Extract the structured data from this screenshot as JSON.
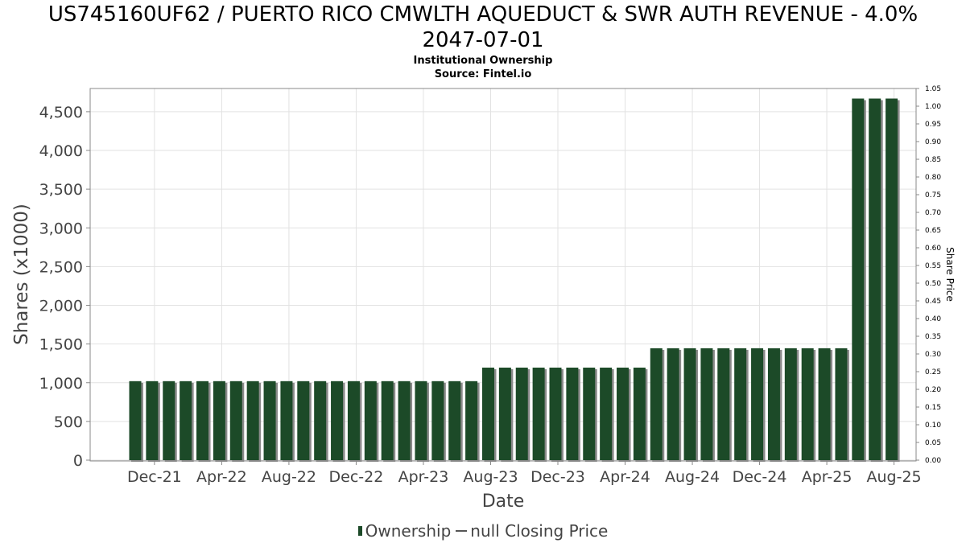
{
  "chart_data": {
    "type": "bar",
    "title": "US745160UF62 / PUERTO RICO CMWLTH AQUEDUCT & SWR AUTH REVENUE - 4.0% 2047-07-01",
    "subtitle": "Institutional Ownership",
    "source": "Source: Fintel.io",
    "xlabel": "Date",
    "ylabel": "Shares (x1000)",
    "y2label": "Share Price",
    "ylim": [
      0,
      4800
    ],
    "y2lim": [
      0,
      1.05
    ],
    "yticks": [
      "0",
      "500",
      "1,000",
      "1,500",
      "2,000",
      "2,500",
      "3,000",
      "3,500",
      "4,000",
      "4,500"
    ],
    "y2ticks": [
      "0.00",
      "0.05",
      "0.10",
      "0.15",
      "0.20",
      "0.25",
      "0.30",
      "0.35",
      "0.40",
      "0.45",
      "0.50",
      "0.55",
      "0.60",
      "0.65",
      "0.70",
      "0.75",
      "0.80",
      "0.85",
      "0.90",
      "0.95",
      "1.00",
      "1.05"
    ],
    "xticks": [
      "Dec-21",
      "Apr-22",
      "Aug-22",
      "Dec-22",
      "Apr-23",
      "Aug-23",
      "Dec-23",
      "Apr-24",
      "Aug-24",
      "Dec-24",
      "Apr-25",
      "Aug-25"
    ],
    "grid": true,
    "legend_position": "bottom",
    "bar_color": "#1c4a28",
    "series": [
      {
        "name": "Ownership",
        "dates": [
          "2021-11",
          "2021-12",
          "2022-01",
          "2022-02",
          "2022-03",
          "2022-04",
          "2022-05",
          "2022-06",
          "2022-07",
          "2022-08",
          "2022-09",
          "2022-10",
          "2022-11",
          "2022-12",
          "2023-01",
          "2023-02",
          "2023-03",
          "2023-04",
          "2023-05",
          "2023-06",
          "2023-07",
          "2023-08",
          "2023-09",
          "2023-10",
          "2023-11",
          "2023-12",
          "2024-01",
          "2024-02",
          "2024-03",
          "2024-04",
          "2024-05",
          "2024-06",
          "2024-07",
          "2024-08",
          "2024-09",
          "2024-10",
          "2024-11",
          "2024-12",
          "2025-01",
          "2025-02",
          "2025-03",
          "2025-04",
          "2025-05",
          "2025-06",
          "2025-07",
          "2025-08"
        ],
        "values": [
          1020,
          1020,
          1020,
          1020,
          1020,
          1020,
          1020,
          1020,
          1020,
          1020,
          1020,
          1020,
          1020,
          1020,
          1020,
          1020,
          1020,
          1020,
          1020,
          1020,
          1020,
          1195,
          1195,
          1195,
          1195,
          1195,
          1195,
          1195,
          1195,
          1195,
          1195,
          1445,
          1445,
          1445,
          1445,
          1445,
          1445,
          1445,
          1445,
          1445,
          1445,
          1445,
          1445,
          4670,
          4670,
          4670
        ]
      }
    ],
    "legend": [
      {
        "label": "Ownership"
      },
      {
        "label": "null Closing Price"
      }
    ]
  }
}
